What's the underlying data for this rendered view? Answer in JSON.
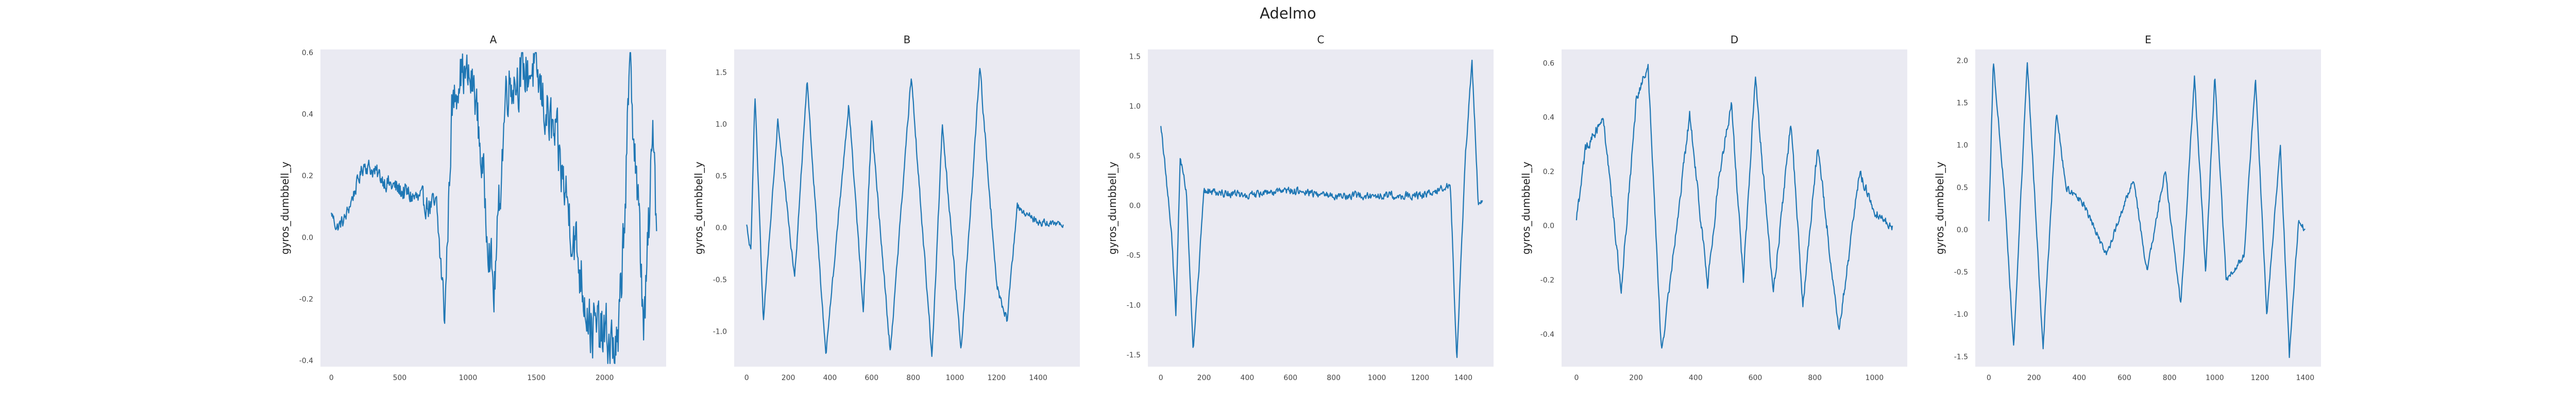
{
  "figure": {
    "title": "Adelmo",
    "line_color": "#1f77b4",
    "panel_bg": "#eaeaf2"
  },
  "chart_data": [
    {
      "type": "line",
      "title": "A",
      "ylabel": "gyros_dumbbell_y",
      "xlabel": "",
      "xlim": [
        -80,
        2450
      ],
      "ylim": [
        -0.42,
        0.61
      ],
      "xticks": [
        0,
        500,
        1000,
        1500,
        2000
      ],
      "yticks": [
        -0.4,
        -0.2,
        0.0,
        0.2,
        0.4,
        0.6
      ],
      "x_max": 2380,
      "y_start": 0.08,
      "y_end": 0.02,
      "key_points": [
        [
          0,
          0.08
        ],
        [
          40,
          0.03
        ],
        [
          100,
          0.06
        ],
        [
          240,
          0.24
        ],
        [
          430,
          0.17
        ],
        [
          600,
          0.13
        ],
        [
          770,
          0.09
        ],
        [
          830,
          -0.26
        ],
        [
          880,
          0.4
        ],
        [
          940,
          0.55
        ],
        [
          1050,
          0.48
        ],
        [
          1190,
          -0.19
        ],
        [
          1280,
          0.5
        ],
        [
          1480,
          0.55
        ],
        [
          1650,
          0.29
        ],
        [
          1900,
          -0.29
        ],
        [
          2100,
          -0.37
        ],
        [
          2190,
          0.56
        ],
        [
          2290,
          -0.3
        ],
        [
          2360,
          0.39
        ],
        [
          2380,
          0.02
        ]
      ],
      "amp_profile": [
        [
          0,
          0.03
        ],
        [
          700,
          0.06
        ],
        [
          900,
          0.12
        ],
        [
          1500,
          0.15
        ],
        [
          2380,
          0.18
        ]
      ]
    },
    {
      "type": "line",
      "title": "B",
      "ylabel": "gyros_dumbbell_y",
      "xlabel": "",
      "xlim": [
        -60,
        1600
      ],
      "ylim": [
        -1.34,
        1.72
      ],
      "xticks": [
        0,
        200,
        400,
        600,
        800,
        1000,
        1200,
        1400
      ],
      "yticks": [
        -1.0,
        -0.5,
        0.0,
        0.5,
        1.0,
        1.5
      ],
      "x_max": 1520,
      "y_start": 0.03,
      "y_end": 0.03,
      "key_points": [
        [
          0,
          0.02
        ],
        [
          20,
          -0.25
        ],
        [
          40,
          1.3
        ],
        [
          80,
          -0.9
        ],
        [
          150,
          1.05
        ],
        [
          230,
          -0.5
        ],
        [
          290,
          1.4
        ],
        [
          380,
          -1.25
        ],
        [
          490,
          1.2
        ],
        [
          560,
          -0.8
        ],
        [
          600,
          1.0
        ],
        [
          690,
          -1.2
        ],
        [
          790,
          1.45
        ],
        [
          890,
          -1.25
        ],
        [
          940,
          1.0
        ],
        [
          1030,
          -1.2
        ],
        [
          1120,
          1.55
        ],
        [
          1200,
          -0.55
        ],
        [
          1250,
          -0.9
        ],
        [
          1300,
          0.2
        ],
        [
          1400,
          0.05
        ],
        [
          1520,
          0.03
        ]
      ],
      "amp_profile": [
        [
          0,
          0.05
        ],
        [
          1200,
          0.07
        ],
        [
          1520,
          0.04
        ]
      ]
    },
    {
      "type": "line",
      "title": "C",
      "ylabel": "gyros_dumbbell_y",
      "xlabel": "",
      "xlim": [
        -60,
        1540
      ],
      "ylim": [
        -1.62,
        1.57
      ],
      "xticks": [
        0,
        200,
        400,
        600,
        800,
        1000,
        1200,
        1400
      ],
      "yticks": [
        -1.5,
        -1.0,
        -0.5,
        0.0,
        0.5,
        1.0,
        1.5
      ],
      "x_max": 1490,
      "y_start": 0.8,
      "y_end": 0.05,
      "key_points": [
        [
          0,
          0.8
        ],
        [
          20,
          0.4
        ],
        [
          50,
          -0.3
        ],
        [
          70,
          -1.1
        ],
        [
          90,
          0.5
        ],
        [
          120,
          0.1
        ],
        [
          150,
          -1.5
        ],
        [
          200,
          0.15
        ],
        [
          400,
          0.1
        ],
        [
          600,
          0.15
        ],
        [
          800,
          0.1
        ],
        [
          1000,
          0.1
        ],
        [
          1200,
          0.1
        ],
        [
          1340,
          0.2
        ],
        [
          1370,
          -1.55
        ],
        [
          1410,
          0.5
        ],
        [
          1440,
          1.45
        ],
        [
          1470,
          0.0
        ],
        [
          1490,
          0.05
        ]
      ],
      "amp_profile": [
        [
          0,
          0.06
        ],
        [
          1490,
          0.06
        ]
      ]
    },
    {
      "type": "line",
      "title": "D",
      "ylabel": "gyros_dumbbell_y",
      "xlabel": "",
      "xlim": [
        -50,
        1110
      ],
      "ylim": [
        -0.52,
        0.65
      ],
      "xticks": [
        0,
        200,
        400,
        600,
        800,
        1000
      ],
      "yticks": [
        -0.4,
        -0.2,
        0.0,
        0.2,
        0.4,
        0.6
      ],
      "x_max": 1060,
      "y_start": 0.02,
      "y_end": 0.0,
      "key_points": [
        [
          0,
          0.02
        ],
        [
          30,
          0.28
        ],
        [
          90,
          0.4
        ],
        [
          150,
          -0.24
        ],
        [
          200,
          0.45
        ],
        [
          240,
          0.6
        ],
        [
          285,
          -0.47
        ],
        [
          380,
          0.41
        ],
        [
          440,
          -0.22
        ],
        [
          480,
          0.2
        ],
        [
          520,
          0.45
        ],
        [
          560,
          -0.2
        ],
        [
          600,
          0.55
        ],
        [
          660,
          -0.25
        ],
        [
          720,
          0.38
        ],
        [
          760,
          -0.3
        ],
        [
          810,
          0.3
        ],
        [
          880,
          -0.4
        ],
        [
          950,
          0.2
        ],
        [
          1000,
          0.05
        ],
        [
          1060,
          0.0
        ]
      ],
      "amp_profile": [
        [
          0,
          0.03
        ],
        [
          1060,
          0.03
        ]
      ]
    },
    {
      "type": "line",
      "title": "E",
      "ylabel": "gyros_dumbbell_y",
      "xlabel": "",
      "xlim": [
        -60,
        1470
      ],
      "ylim": [
        -1.62,
        2.13
      ],
      "xticks": [
        0,
        200,
        400,
        600,
        800,
        1000,
        1200,
        1400
      ],
      "yticks": [
        -1.5,
        -1.0,
        -0.5,
        0.0,
        0.5,
        1.0,
        1.5,
        2.0
      ],
      "x_max": 1400,
      "y_start": 0.1,
      "y_end": 0.0,
      "key_points": [
        [
          0,
          0.1
        ],
        [
          20,
          2.0
        ],
        [
          70,
          0.4
        ],
        [
          110,
          -1.4
        ],
        [
          170,
          2.0
        ],
        [
          240,
          -1.4
        ],
        [
          300,
          1.4
        ],
        [
          340,
          0.5
        ],
        [
          420,
          0.3
        ],
        [
          520,
          -0.3
        ],
        [
          640,
          0.6
        ],
        [
          700,
          -0.5
        ],
        [
          780,
          0.7
        ],
        [
          850,
          -0.9
        ],
        [
          910,
          1.8
        ],
        [
          960,
          -0.5
        ],
        [
          1000,
          1.8
        ],
        [
          1050,
          -0.6
        ],
        [
          1130,
          -0.3
        ],
        [
          1180,
          1.8
        ],
        [
          1230,
          -1.0
        ],
        [
          1290,
          1.0
        ],
        [
          1330,
          -1.5
        ],
        [
          1370,
          0.1
        ],
        [
          1400,
          0.0
        ]
      ],
      "amp_profile": [
        [
          0,
          0.06
        ],
        [
          1400,
          0.06
        ]
      ]
    }
  ]
}
